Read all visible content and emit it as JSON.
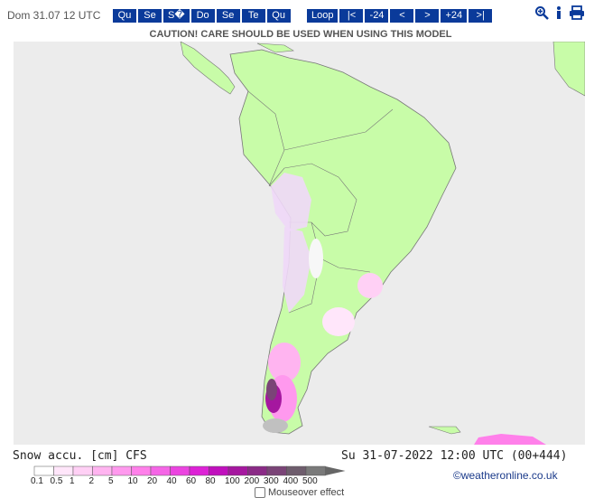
{
  "header": {
    "date": "Dom 31.07 12 UTC",
    "days": [
      "Qu",
      "Se",
      "S�",
      "Do",
      "Se",
      "Te",
      "Qu"
    ],
    "controls": [
      "Loop",
      "|<",
      "-24",
      "<",
      ">",
      "+24",
      ">|"
    ]
  },
  "caution": "CAUTION! CARE SHOULD BE USED WHEN USING THIS MODEL",
  "footer": {
    "legend_title": "Snow accu. [cm] CFS",
    "valid": "Su 31-07-2022 12:00 UTC (00+444)",
    "copyright": "©weatheronline.co.uk",
    "mouseover": "Mouseover effect"
  },
  "legend": {
    "labels": [
      "0.1",
      "0.5",
      "1",
      "2",
      "5",
      "10",
      "20",
      "40",
      "60",
      "80",
      "100",
      "200",
      "300",
      "400",
      "500"
    ],
    "colors": [
      "#ffffff",
      "#ffe6fa",
      "#ffd0f5",
      "#ffb4f0",
      "#ff99ee",
      "#ff80ea",
      "#f566e6",
      "#eb44e0",
      "#dd22d6",
      "#c010bd",
      "#a5179f",
      "#8a2a86",
      "#7a4477",
      "#6e5d6d",
      "#7a7a7a"
    ]
  }
}
